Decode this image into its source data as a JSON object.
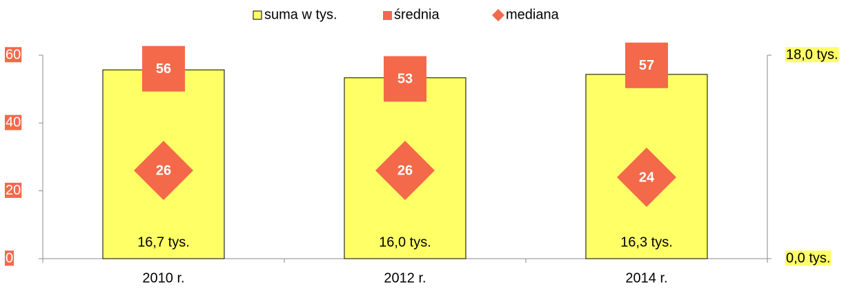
{
  "chart_data": {
    "type": "combo",
    "categories": [
      "2010 r.",
      "2012 r.",
      "2014 r."
    ],
    "series": [
      {
        "name": "suma w tys.",
        "type": "bar",
        "axis": "y2",
        "color": "#ffff66",
        "values": [
          16.7,
          16.0,
          16.3
        ],
        "value_labels": [
          "16,7 tys.",
          "16,0 tys.",
          "16,3 tys."
        ]
      },
      {
        "name": "średnia",
        "type": "scatter",
        "marker": "square",
        "color": "#f4694a",
        "values": [
          56,
          53,
          57
        ]
      },
      {
        "name": "mediana",
        "type": "scatter",
        "marker": "diamond",
        "color": "#f4694a",
        "values": [
          26,
          26,
          24
        ]
      }
    ],
    "ylim": [
      0,
      60
    ],
    "yticks": [
      0,
      20,
      40,
      60
    ],
    "y2lim": [
      0,
      18
    ],
    "y2ticks": [
      {
        "value": 0,
        "label": "0,0 tys."
      },
      {
        "value": 18,
        "label": "18,0 tys."
      }
    ],
    "legend": "top"
  }
}
